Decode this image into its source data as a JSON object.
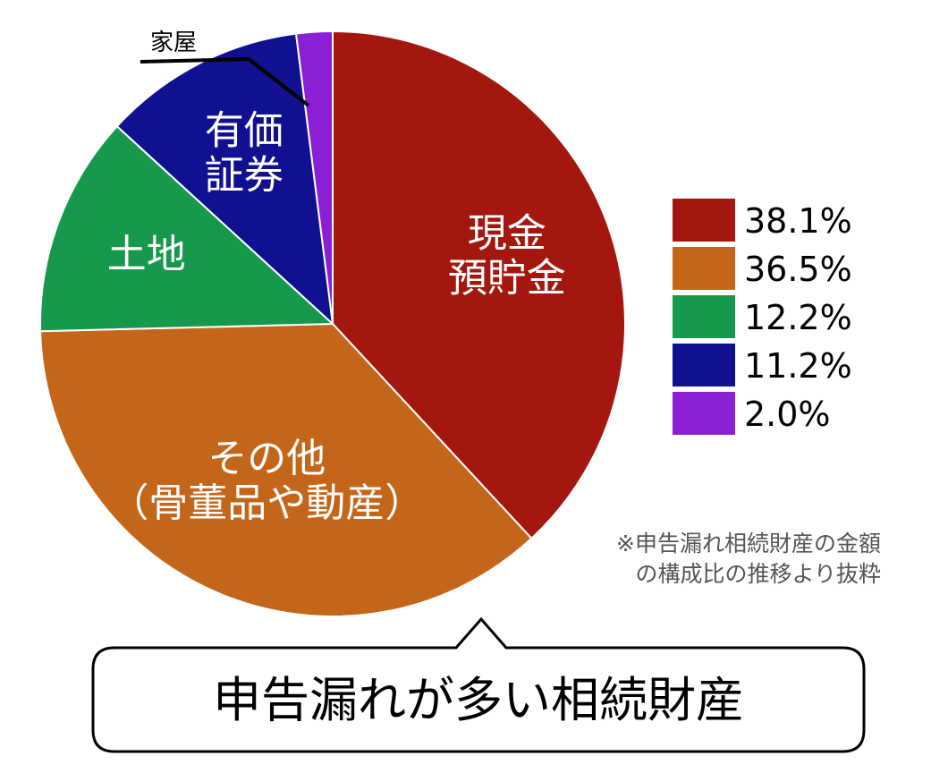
{
  "chart_data": {
    "type": "pie",
    "slices": [
      {
        "label_lines": [
          "現金",
          "預貯金"
        ],
        "value": 38.1,
        "value_label": "38.1%",
        "color": "#A3170F"
      },
      {
        "label_lines": [
          "その他",
          "（骨董品や動産）"
        ],
        "value": 36.5,
        "value_label": "36.5%",
        "color": "#C4661A"
      },
      {
        "label_lines": [
          "土地"
        ],
        "value": 12.2,
        "value_label": "12.2%",
        "color": "#16994C"
      },
      {
        "label_lines": [
          "有価",
          "証券"
        ],
        "value": 11.2,
        "value_label": "11.2%",
        "color": "#101090"
      },
      {
        "label_lines": [],
        "callout_label": "家屋",
        "value": 2.0,
        "value_label": "2.0%",
        "color": "#8B1FD6"
      }
    ],
    "legend_placement": "right",
    "note_lines": [
      "※申告漏れ相続財産の金額",
      "の構成比の推移より抜粋"
    ]
  },
  "bubble": {
    "text": "申告漏れが多い相続財産"
  }
}
